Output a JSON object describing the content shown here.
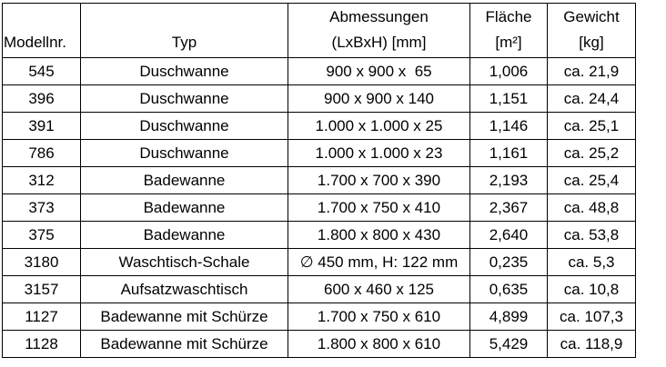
{
  "table": {
    "headers": [
      {
        "lines": [
          "Modellnr."
        ]
      },
      {
        "lines": [
          "Typ"
        ]
      },
      {
        "lines": [
          "Abmessungen",
          "(LxBxH) [mm]"
        ]
      },
      {
        "lines": [
          "Fläche",
          "[m²]"
        ]
      },
      {
        "lines": [
          "Gewicht",
          "[kg]"
        ]
      }
    ],
    "rows": [
      [
        "545",
        "Duschwanne",
        "900 x 900 x  65",
        "1,006",
        "ca. 21,9"
      ],
      [
        "396",
        "Duschwanne",
        "900 x 900 x 140",
        "1,151",
        "ca. 24,4"
      ],
      [
        "391",
        "Duschwanne",
        "1.000 x 1.000 x 25",
        "1,146",
        "ca. 25,1"
      ],
      [
        "786",
        "Duschwanne",
        "1.000 x 1.000 x 23",
        "1,161",
        "ca. 25,2"
      ],
      [
        "312",
        "Badewanne",
        "1.700 x 700 x 390",
        "2,193",
        "ca. 25,4"
      ],
      [
        "373",
        "Badewanne",
        "1.700 x 750 x 410",
        "2,367",
        "ca. 48,8"
      ],
      [
        "375",
        "Badewanne",
        "1.800 x 800 x 430",
        "2,640",
        "ca. 53,8"
      ],
      [
        "3180",
        "Waschtisch-Schale",
        "∅ 450 mm, H: 122 mm",
        "0,235",
        "ca. 5,3"
      ],
      [
        "3157",
        "Aufsatzwaschtisch",
        "600 x 460 x 125",
        "0,635",
        "ca. 10,8"
      ],
      [
        "1127",
        "Badewanne mit Schürze",
        "1.700 x 750 x 610",
        "4,899",
        "ca. 107,3"
      ],
      [
        "1128",
        "Badewanne mit Schürze",
        "1.800 x 800 x 610",
        "5,429",
        "ca. 118,9"
      ]
    ]
  }
}
